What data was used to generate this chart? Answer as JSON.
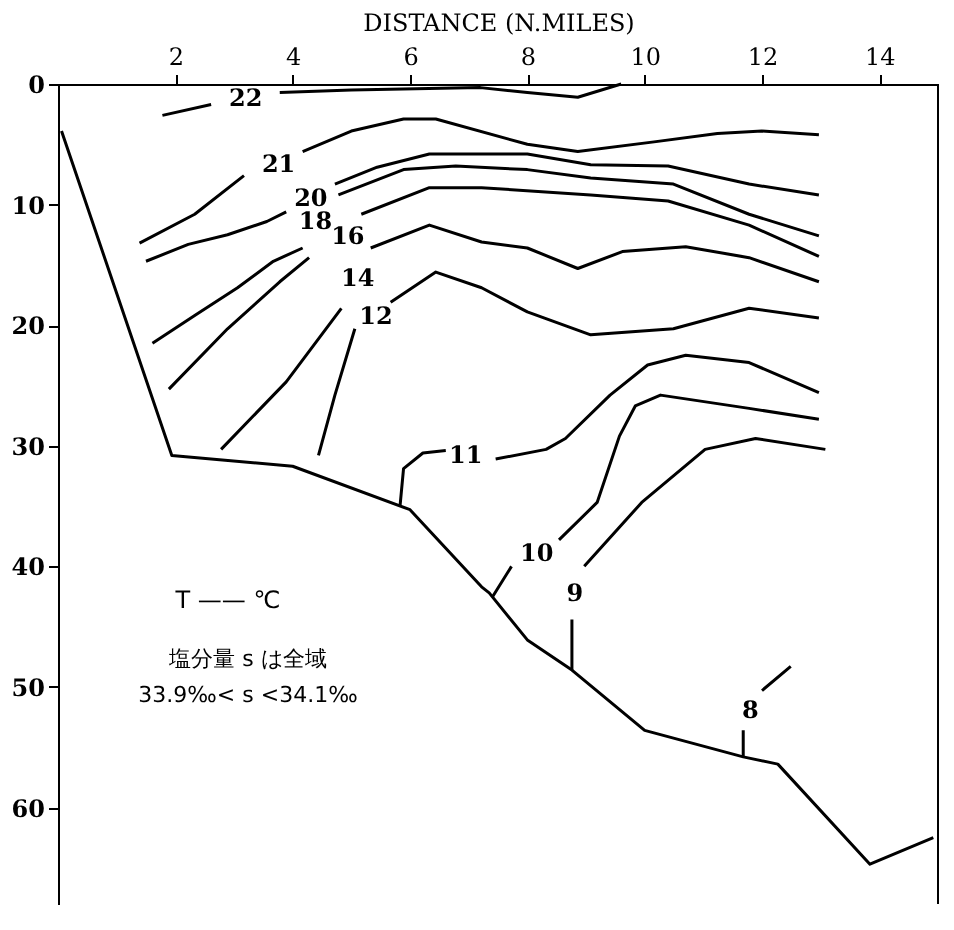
{
  "chart_data": {
    "type": "line",
    "xlabel": "DISTANCE (N.MILES)",
    "xlim": [
      0,
      15
    ],
    "xticks": [
      2,
      4,
      6,
      8,
      10,
      12,
      14
    ],
    "ylim": [
      68,
      0
    ],
    "yticks": [
      0,
      10,
      20,
      30,
      40,
      50,
      60
    ],
    "grid": false,
    "series": [
      {
        "name": "22",
        "color": "#000000",
        "x": [
          1.78,
          2.61,
          3.2,
          3.78,
          5.0,
          7.2,
          8.0,
          8.86,
          9.6
        ],
        "values": [
          2.6,
          1.7,
          null,
          0.7,
          0.5,
          0.3,
          0.7,
          1.1,
          0
        ]
      },
      {
        "name": "21",
        "color": "#000000",
        "x": [
          1.39,
          2.33,
          3.17,
          3.76,
          4.17,
          5.0,
          5.89,
          6.44,
          8.0,
          8.86,
          10.16,
          11.24,
          12.0,
          12.97
        ],
        "values": [
          13.2,
          10.8,
          7.6,
          null,
          5.6,
          3.9,
          2.9,
          2.9,
          5.0,
          5.6,
          4.8,
          4.1,
          3.9,
          4.2
        ]
      },
      {
        "name": "20",
        "color": "#000000",
        "x": [
          1.5,
          2.22,
          2.89,
          3.56,
          3.89,
          4.31,
          4.72,
          5.44,
          6.33,
          8.0,
          9.08,
          10.4,
          11.78,
          12.97
        ],
        "values": [
          14.7,
          13.3,
          12.5,
          11.4,
          10.6,
          null,
          8.3,
          6.9,
          5.8,
          5.8,
          6.7,
          6.8,
          8.3,
          9.2
        ]
      },
      {
        "name": "18",
        "color": "#000000",
        "x": [
          1.61,
          2.33,
          3.06,
          3.67,
          4.17,
          4.39,
          4.78,
          5.89,
          6.78,
          8.0,
          9.08,
          10.49,
          11.78,
          12.97
        ],
        "values": [
          21.5,
          19.2,
          16.9,
          14.7,
          13.6,
          null,
          9.2,
          7.1,
          6.8,
          7.1,
          7.8,
          8.3,
          10.8,
          12.6
        ]
      },
      {
        "name": "16",
        "color": "#000000",
        "x": [
          1.89,
          2.89,
          3.78,
          4.28,
          4.94,
          5.17,
          6.33,
          7.22,
          9.08,
          10.4,
          11.78,
          12.97
        ],
        "values": [
          25.3,
          20.3,
          16.4,
          14.4,
          null,
          10.8,
          8.6,
          8.6,
          9.2,
          9.7,
          11.7,
          14.3
        ]
      },
      {
        "name": "14",
        "color": "#000000",
        "x": [
          2.78,
          3.89,
          4.83,
          5.11,
          5.33,
          6.33,
          7.22,
          8.0,
          8.86,
          9.62,
          10.7,
          11.78,
          12.97
        ],
        "values": [
          30.3,
          24.7,
          18.6,
          null,
          13.6,
          11.7,
          13.1,
          13.6,
          15.3,
          13.9,
          13.5,
          14.4,
          16.4
        ]
      },
      {
        "name": "12",
        "color": "#000000",
        "x": [
          4.44,
          4.72,
          5.06,
          5.42,
          5.67,
          6.44,
          7.22,
          8.0,
          9.08,
          10.49,
          11.78,
          12.97
        ],
        "values": [
          30.8,
          25.8,
          20.3,
          null,
          18.1,
          15.6,
          16.9,
          18.9,
          20.8,
          20.3,
          18.6,
          19.4
        ]
      },
      {
        "name": "11",
        "color": "#000000",
        "x": [
          5.83,
          5.89,
          6.22,
          6.61,
          6.95,
          7.46,
          8.32,
          8.65,
          9.41,
          10.05,
          10.7,
          11.78,
          12.97
        ],
        "values": [
          35.0,
          31.9,
          30.6,
          30.4,
          null,
          31.1,
          30.3,
          29.4,
          25.8,
          23.3,
          22.5,
          23.1,
          25.6
        ]
      },
      {
        "name": "10",
        "color": "#000000",
        "x": [
          7.41,
          7.73,
          8.16,
          8.54,
          9.19,
          9.57,
          9.84,
          10.27,
          11.78,
          12.97
        ],
        "values": [
          42.5,
          40.0,
          null,
          37.8,
          34.7,
          29.2,
          26.7,
          25.8,
          26.9,
          27.8
        ]
      },
      {
        "name": "9",
        "color": "#000000",
        "x": [
          8.76,
          8.76,
          8.81,
          8.97,
          9.95,
          11.03,
          11.89,
          13.08
        ],
        "values": [
          48.6,
          44.4,
          null,
          40.0,
          34.7,
          30.3,
          29.4,
          30.3
        ]
      },
      {
        "name": "8",
        "color": "#000000",
        "x": [
          11.68,
          11.68,
          11.8,
          12.0,
          12.49
        ],
        "values": [
          55.8,
          53.6,
          null,
          50.3,
          48.3
        ]
      },
      {
        "color": "#000000",
        "x": [
          0.06,
          1.94,
          4.0,
          6.0,
          7.22,
          7.35,
          8.0,
          8.76,
          10.0,
          11.68,
          12.27,
          13.84,
          14.92
        ],
        "values": [
          3.9,
          30.8,
          31.7,
          35.3,
          41.7,
          42.2,
          46.1,
          48.6,
          53.6,
          55.8,
          56.4,
          64.7,
          62.5
        ]
      }
    ],
    "annotations": [
      "T —— ℃",
      "塩分量 s は全域",
      "33.9‰< s <34.1‰"
    ]
  }
}
